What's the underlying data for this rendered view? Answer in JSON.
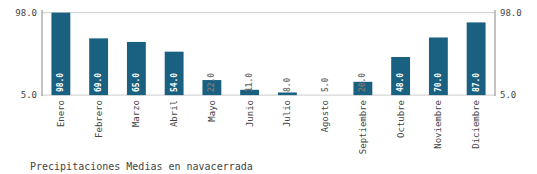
{
  "chart_data": {
    "type": "bar",
    "title": "Precipitaciones Medias en navacerrada",
    "categories": [
      "Enero",
      "Febrero",
      "Marzo",
      "Abril",
      "Mayo",
      "Junio",
      "Julio",
      "Agosto",
      "Septiembre",
      "Octubre",
      "Noviembre",
      "Diciembre"
    ],
    "values": [
      98,
      69,
      65,
      54,
      22,
      11,
      8,
      5,
      20,
      48,
      70,
      87
    ],
    "value_labels": [
      "98.0",
      "69.0",
      "65.0",
      "54.0",
      "22.0",
      "11.0",
      "8.0",
      "5.0",
      "20.0",
      "48.0",
      "70.0",
      "87.0"
    ],
    "data_labels": true,
    "color": "#1a6080",
    "ylim": [
      4,
      101
    ],
    "yticks": [
      {
        "value": 5,
        "label": "5.0"
      },
      {
        "value": 98,
        "label": "98.0"
      }
    ],
    "y2lim": [
      4,
      101
    ],
    "y2ticks": [
      {
        "value": 5,
        "label": "5.0"
      },
      {
        "value": 98,
        "label": "98.0"
      }
    ],
    "grid": true
  }
}
